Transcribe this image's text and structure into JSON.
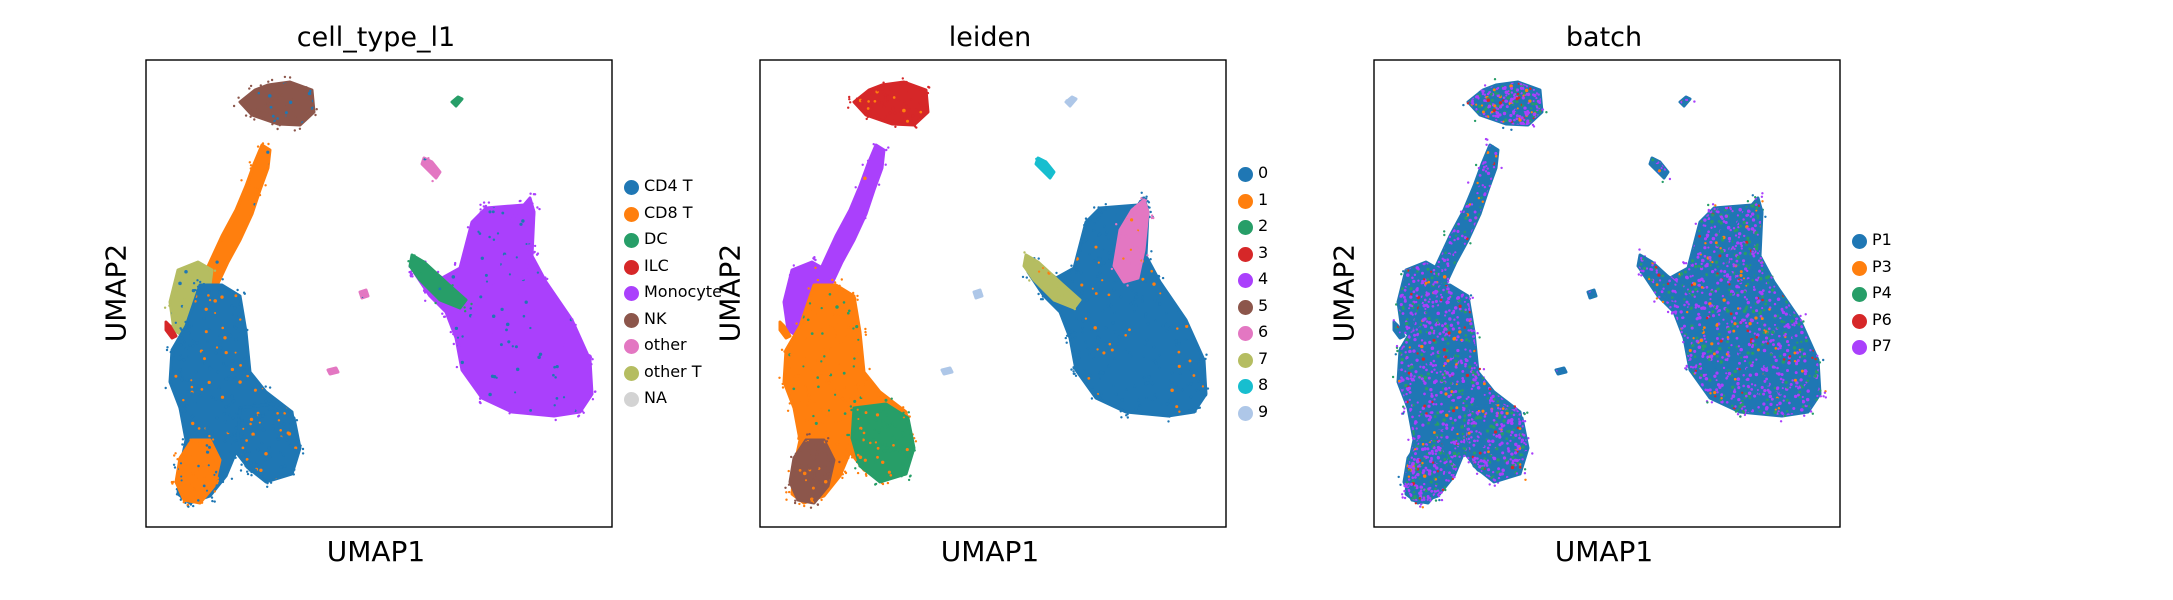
{
  "chart_data": [
    {
      "type": "scatter",
      "title": "cell_type_l1",
      "xlabel": "UMAP1",
      "ylabel": "UMAP2",
      "grid": false,
      "ticks": false,
      "legend_placement": "right",
      "legend": [
        {
          "label": "CD4 T",
          "color": "#1f77b4"
        },
        {
          "label": "CD8 T",
          "color": "#ff7f0e"
        },
        {
          "label": "DC",
          "color": "#279e68"
        },
        {
          "label": "ILC",
          "color": "#d62728"
        },
        {
          "label": "Monocyte",
          "color": "#aa40fc"
        },
        {
          "label": "NK",
          "color": "#8c564b"
        },
        {
          "label": "other",
          "color": "#e377c2"
        },
        {
          "label": "other T",
          "color": "#b5bd61"
        },
        {
          "label": "NA",
          "color": "#d3d3d3"
        }
      ]
    },
    {
      "type": "scatter",
      "title": "leiden",
      "xlabel": "UMAP1",
      "ylabel": "UMAP2",
      "grid": false,
      "ticks": false,
      "legend_placement": "right",
      "legend": [
        {
          "label": "0",
          "color": "#1f77b4"
        },
        {
          "label": "1",
          "color": "#ff7f0e"
        },
        {
          "label": "2",
          "color": "#279e68"
        },
        {
          "label": "3",
          "color": "#d62728"
        },
        {
          "label": "4",
          "color": "#aa40fc"
        },
        {
          "label": "5",
          "color": "#8c564b"
        },
        {
          "label": "6",
          "color": "#e377c2"
        },
        {
          "label": "7",
          "color": "#b5bd61"
        },
        {
          "label": "8",
          "color": "#17becf"
        },
        {
          "label": "9",
          "color": "#aec7e8"
        }
      ]
    },
    {
      "type": "scatter",
      "title": "batch",
      "xlabel": "UMAP1",
      "ylabel": "UMAP2",
      "grid": false,
      "ticks": false,
      "legend_placement": "right",
      "legend": [
        {
          "label": "P1",
          "color": "#1f77b4"
        },
        {
          "label": "P3",
          "color": "#ff7f0e"
        },
        {
          "label": "P4",
          "color": "#279e68"
        },
        {
          "label": "P6",
          "color": "#d62728"
        },
        {
          "label": "P7",
          "color": "#aa40fc"
        }
      ]
    }
  ]
}
